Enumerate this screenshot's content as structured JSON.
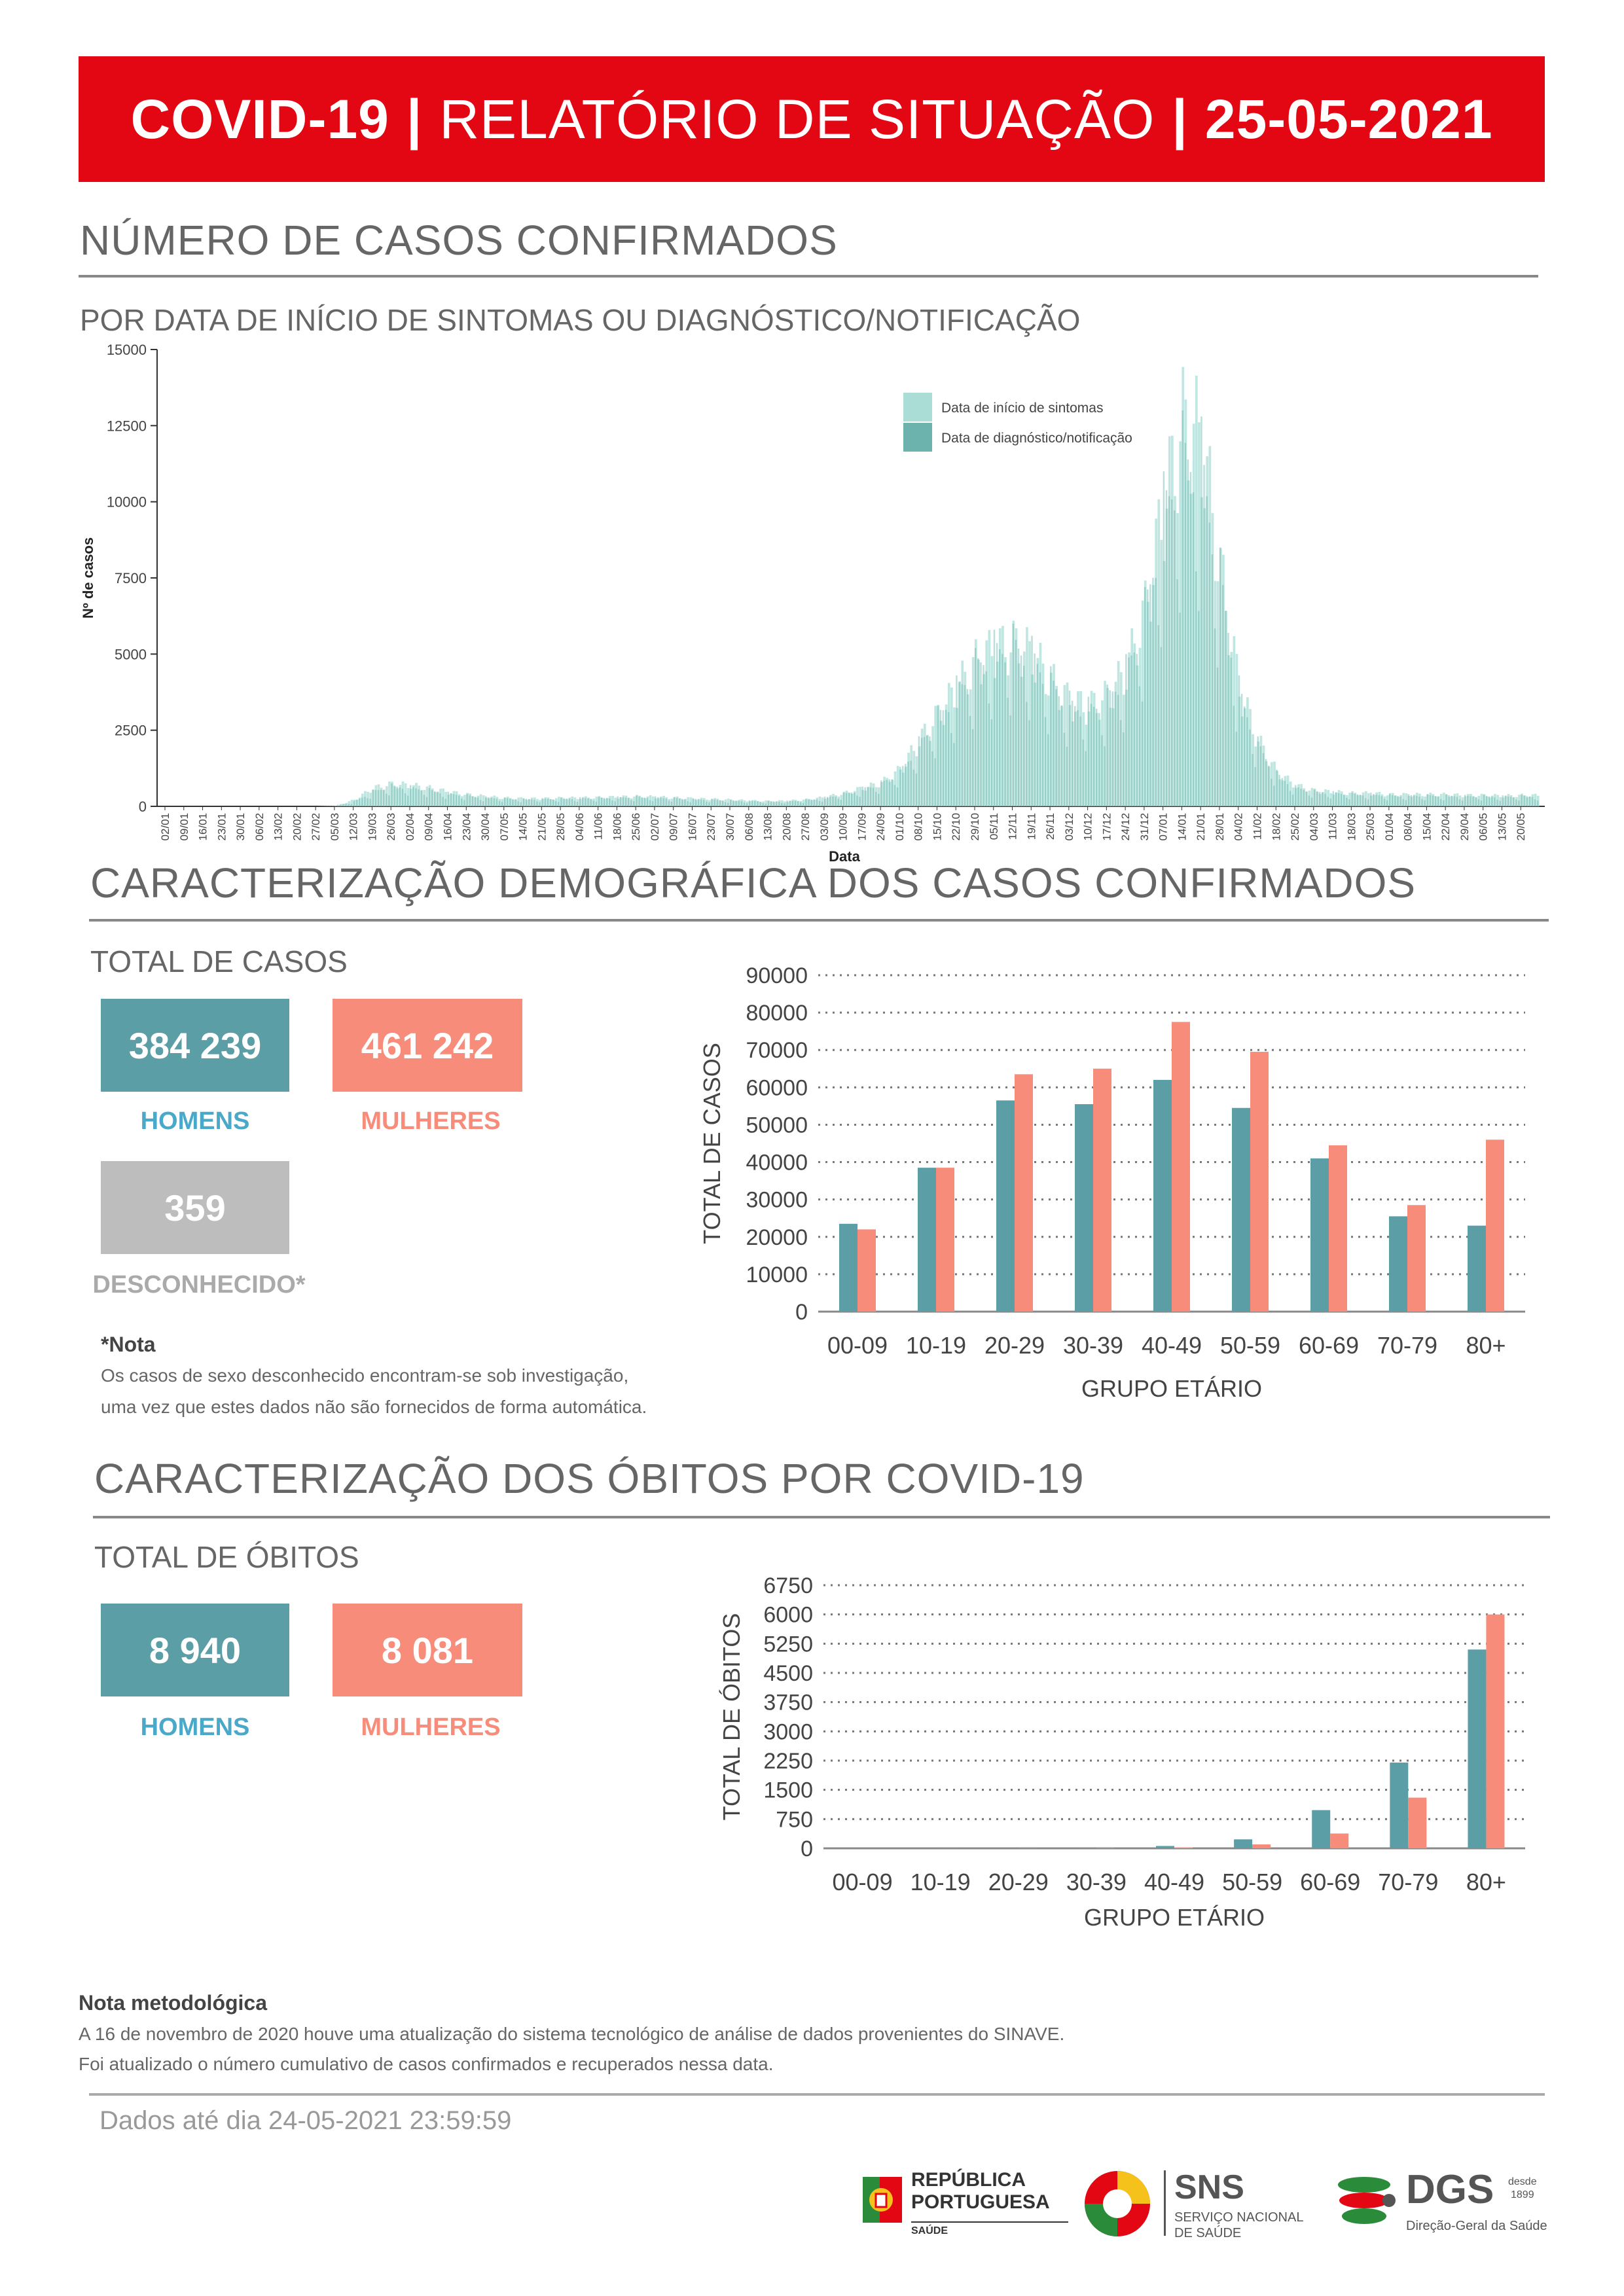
{
  "header": {
    "part1": "COVID-19",
    "sep": "|",
    "part2": "RELATÓRIO DE SITUAÇÃO",
    "part3": "25-05-2021"
  },
  "section1": {
    "title": "NÚMERO DE CASOS CONFIRMADOS",
    "subtitle": "POR DATA DE INÍCIO DE SINTOMAS OU DIAGNÓSTICO/NOTIFICAÇÃO"
  },
  "section2": {
    "title": "CARACTERIZAÇÃO DEMOGRÁFICA DOS CASOS CONFIRMADOS",
    "total_label": "TOTAL DE CASOS",
    "men_value": "384 239",
    "women_value": "461 242",
    "unknown_value": "359",
    "men_label": "HOMENS",
    "women_label": "MULHERES",
    "unknown_label": "DESCONHECIDO*",
    "note_title": "*Nota",
    "note_line1": "Os casos de sexo desconhecido encontram-se sob investigação,",
    "note_line2": "uma vez que estes dados não são fornecidos de forma automática."
  },
  "section3": {
    "title": "CARACTERIZAÇÃO DOS ÓBITOS POR COVID-19",
    "total_label": "TOTAL DE ÓBITOS",
    "men_value": "8 940",
    "women_value": "8 081",
    "men_label": "HOMENS",
    "women_label": "MULHERES"
  },
  "method_note": {
    "title": "Nota metodológica",
    "line1": "A 16 de novembro de 2020 houve uma atualização do sistema tecnológico de análise de dados provenientes do SINAVE.",
    "line2": "Foi atualizado o número cumulativo de casos confirmados e recuperados nessa data."
  },
  "footer": {
    "data_until": "Dados até dia 24-05-2021 23:59:59",
    "logo1_line1": "REPÚBLICA",
    "logo1_line2": "PORTUGUESA",
    "logo1_line3": "SAÚDE",
    "logo2_title": "SNS",
    "logo2_line1": "SERVIÇO NACIONAL",
    "logo2_line2": "DE SAÚDE",
    "logo3_title": "DGS",
    "logo3_since1": "desde",
    "logo3_since2": "1899",
    "logo3_sub": "Direção-Geral da Saúde"
  },
  "colors": {
    "banner": "#e30613",
    "men": "#5b9ea6",
    "women": "#f68c79",
    "unknown": "#bdbdbd",
    "symptoms": "#a9ddd6",
    "diagnosis": "#6bb3ac"
  },
  "chart_data": [
    {
      "type": "bar",
      "xlabel": "Data",
      "ylabel": "Nº de casos",
      "ylim": [
        0,
        15000
      ],
      "yticks": [
        0,
        2500,
        5000,
        7500,
        10000,
        12500,
        15000
      ],
      "legend_position": "top-right",
      "legend": [
        "Data de início de sintomas",
        "Data de diagnóstico/notificação"
      ],
      "x_tick_labels": [
        "02/01",
        "09/01",
        "16/01",
        "23/01",
        "30/01",
        "06/02",
        "13/02",
        "20/02",
        "27/02",
        "05/03",
        "12/03",
        "19/03",
        "26/03",
        "02/04",
        "09/04",
        "16/04",
        "23/04",
        "30/04",
        "07/05",
        "14/05",
        "21/05",
        "28/05",
        "04/06",
        "11/06",
        "18/06",
        "25/06",
        "02/07",
        "09/07",
        "16/07",
        "23/07",
        "30/07",
        "06/08",
        "13/08",
        "20/08",
        "27/08",
        "03/09",
        "10/09",
        "17/09",
        "24/09",
        "01/10",
        "08/10",
        "15/10",
        "22/10",
        "29/10",
        "05/11",
        "12/11",
        "19/11",
        "26/11",
        "03/12",
        "10/12",
        "17/12",
        "24/12",
        "31/12",
        "07/01",
        "14/01",
        "21/01",
        "28/01",
        "04/02",
        "11/02",
        "18/02",
        "25/02",
        "04/03",
        "11/03",
        "18/03",
        "25/03",
        "01/04",
        "08/04",
        "15/04",
        "22/04",
        "29/04",
        "06/05",
        "13/05",
        "20/05"
      ],
      "series": [
        {
          "name": "Data de início de sintomas",
          "weekly_peaks": [
            0,
            0,
            0,
            0,
            0,
            0,
            0,
            0,
            0,
            20,
            250,
            700,
            850,
            800,
            700,
            550,
            450,
            380,
            320,
            300,
            300,
            320,
            330,
            340,
            360,
            380,
            360,
            330,
            300,
            280,
            250,
            220,
            200,
            210,
            260,
            350,
            500,
            700,
            900,
            1400,
            2500,
            3500,
            4500,
            5500,
            6000,
            6200,
            5800,
            4800,
            4000,
            3800,
            4200,
            5200,
            7500,
            11500,
            14500,
            14000,
            9000,
            4500,
            2500,
            1300,
            800,
            600,
            550,
            500,
            500,
            450,
            450,
            450,
            450,
            420,
            420,
            400,
            420
          ]
        },
        {
          "name": "Data de diagnóstico/notificação",
          "weekly_peaks": [
            0,
            0,
            0,
            0,
            0,
            0,
            0,
            0,
            0,
            10,
            180,
            550,
            750,
            700,
            600,
            480,
            400,
            330,
            290,
            270,
            270,
            290,
            300,
            310,
            330,
            350,
            330,
            300,
            270,
            250,
            220,
            200,
            180,
            190,
            230,
            320,
            450,
            650,
            850,
            1300,
            2300,
            3300,
            4300,
            5200,
            5800,
            6000,
            5600,
            4600,
            3800,
            3600,
            4000,
            5000,
            7200,
            11000,
            13000,
            12800,
            8500,
            4300,
            2300,
            1200,
            700,
            550,
            500,
            450,
            450,
            400,
            400,
            400,
            400,
            380,
            380,
            360,
            380
          ]
        }
      ]
    },
    {
      "type": "bar",
      "xlabel": "GRUPO ETÁRIO",
      "ylabel": "TOTAL DE CASOS",
      "ylim": [
        0,
        90000
      ],
      "yticks": [
        0,
        10000,
        20000,
        30000,
        40000,
        50000,
        60000,
        70000,
        80000,
        90000
      ],
      "categories": [
        "00-09",
        "10-19",
        "20-29",
        "30-39",
        "40-49",
        "50-59",
        "60-69",
        "70-79",
        "80+"
      ],
      "series": [
        {
          "name": "HOMENS",
          "values": [
            23500,
            38500,
            56500,
            55500,
            62000,
            54500,
            41000,
            25500,
            23000
          ]
        },
        {
          "name": "MULHERES",
          "values": [
            22000,
            38500,
            63500,
            65000,
            77500,
            69500,
            44500,
            28500,
            46000
          ]
        }
      ]
    },
    {
      "type": "bar",
      "xlabel": "GRUPO ETÁRIO",
      "ylabel": "TOTAL DE ÓBITOS",
      "ylim": [
        0,
        6750
      ],
      "yticks": [
        0,
        750,
        1500,
        2250,
        3000,
        3750,
        4500,
        5250,
        6000,
        6750
      ],
      "categories": [
        "00-09",
        "10-19",
        "20-29",
        "30-39",
        "40-49",
        "50-59",
        "60-69",
        "70-79",
        "80+"
      ],
      "series": [
        {
          "name": "HOMENS",
          "values": [
            1,
            2,
            5,
            15,
            60,
            230,
            980,
            2200,
            5100
          ]
        },
        {
          "name": "MULHERES",
          "values": [
            0,
            1,
            3,
            8,
            25,
            100,
            380,
            1300,
            6000
          ]
        }
      ]
    }
  ]
}
